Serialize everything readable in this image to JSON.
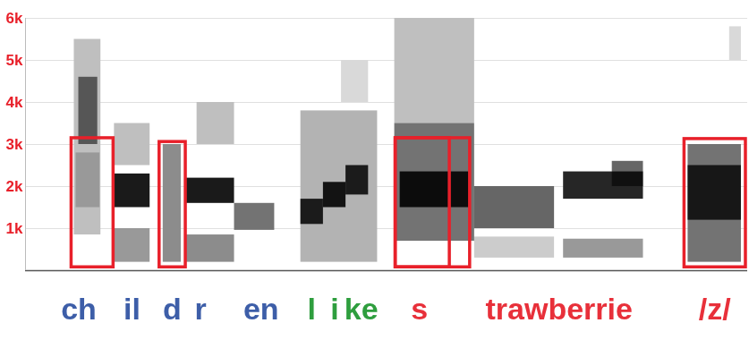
{
  "chart_data": {
    "type": "spectrogram",
    "xlim": [
      0,
      1600
    ],
    "ylim": [
      0,
      6000
    ],
    "yticks": [
      {
        "value": 1000,
        "label": "1k"
      },
      {
        "value": 2000,
        "label": "2k"
      },
      {
        "value": 3000,
        "label": "3k"
      },
      {
        "value": 4000,
        "label": "4k"
      },
      {
        "value": 5000,
        "label": "5k"
      },
      {
        "value": 6000,
        "label": "6k"
      }
    ],
    "grid": true,
    "tick_labels": "y",
    "color": "#000000",
    "cells": [
      {
        "x0": 108,
        "x1": 167,
        "y0": 850,
        "y1": 5500,
        "level": 0.25
      },
      {
        "x0": 118,
        "x1": 160,
        "y0": 3000,
        "y1": 4600,
        "level": 0.55
      },
      {
        "x0": 112,
        "x1": 165,
        "y0": 1500,
        "y1": 2800,
        "level": 0.2
      },
      {
        "x0": 197,
        "x1": 276,
        "y0": 1500,
        "y1": 2300,
        "level": 0.9
      },
      {
        "x0": 197,
        "x1": 276,
        "y0": 200,
        "y1": 1000,
        "level": 0.4
      },
      {
        "x0": 197,
        "x1": 276,
        "y0": 2500,
        "y1": 3500,
        "level": 0.25
      },
      {
        "x0": 305,
        "x1": 345,
        "y0": 200,
        "y1": 3000,
        "level": 0.45
      },
      {
        "x0": 355,
        "x1": 463,
        "y0": 1600,
        "y1": 2200,
        "level": 0.9
      },
      {
        "x0": 355,
        "x1": 463,
        "y0": 200,
        "y1": 850,
        "level": 0.45
      },
      {
        "x0": 380,
        "x1": 463,
        "y0": 3000,
        "y1": 4000,
        "level": 0.25
      },
      {
        "x0": 463,
        "x1": 552,
        "y0": 960,
        "y1": 1600,
        "level": 0.55
      },
      {
        "x0": 610,
        "x1": 780,
        "y0": 200,
        "y1": 3800,
        "level": 0.3
      },
      {
        "x0": 610,
        "x1": 660,
        "y0": 1100,
        "y1": 1700,
        "level": 0.85
      },
      {
        "x0": 660,
        "x1": 710,
        "y0": 1500,
        "y1": 2100,
        "level": 0.9
      },
      {
        "x0": 710,
        "x1": 760,
        "y0": 1800,
        "y1": 2500,
        "level": 0.85
      },
      {
        "x0": 700,
        "x1": 760,
        "y0": 4000,
        "y1": 5000,
        "level": 0.15
      },
      {
        "x0": 818,
        "x1": 995,
        "y0": 3500,
        "y1": 6000,
        "level": 0.25
      },
      {
        "x0": 818,
        "x1": 995,
        "y0": 700,
        "y1": 3500,
        "level": 0.55
      },
      {
        "x0": 830,
        "x1": 985,
        "y0": 1500,
        "y1": 2350,
        "level": 0.9
      },
      {
        "x0": 995,
        "x1": 1172,
        "y0": 1000,
        "y1": 2000,
        "level": 0.6
      },
      {
        "x0": 995,
        "x1": 1172,
        "y0": 300,
        "y1": 800,
        "level": 0.2
      },
      {
        "x0": 1192,
        "x1": 1369,
        "y0": 1700,
        "y1": 2350,
        "level": 0.85
      },
      {
        "x0": 1192,
        "x1": 1369,
        "y0": 300,
        "y1": 750,
        "level": 0.4
      },
      {
        "x0": 1300,
        "x1": 1369,
        "y0": 2000,
        "y1": 2600,
        "level": 0.6
      },
      {
        "x0": 1468,
        "x1": 1586,
        "y0": 200,
        "y1": 3000,
        "level": 0.55
      },
      {
        "x0": 1468,
        "x1": 1586,
        "y0": 1200,
        "y1": 2500,
        "level": 0.8
      },
      {
        "x0": 1560,
        "x1": 1586,
        "y0": 5000,
        "y1": 5800,
        "level": 0.15
      }
    ],
    "boxes": [
      {
        "x0": 102,
        "x1": 195,
        "y0": 80,
        "y1": 3150,
        "color": "#e8202a"
      },
      {
        "x0": 297,
        "x1": 355,
        "y0": 80,
        "y1": 3060,
        "color": "#e8202a"
      },
      {
        "x0": 820,
        "x1": 940,
        "y0": 80,
        "y1": 3150,
        "color": "#e8202a"
      },
      {
        "x0": 820,
        "x1": 985,
        "y0": 80,
        "y1": 3150,
        "color": "#e8202a"
      },
      {
        "x0": 1460,
        "x1": 1596,
        "y0": 80,
        "y1": 3130,
        "color": "#e8202a"
      }
    ],
    "segment_labels": [
      {
        "text": "ch",
        "x": 118,
        "color": "#3d5ea8"
      },
      {
        "text": "il",
        "x": 236,
        "color": "#3d5ea8"
      },
      {
        "text": "d",
        "x": 325,
        "color": "#3d5ea8"
      },
      {
        "text": "r",
        "x": 388,
        "color": "#3d5ea8"
      },
      {
        "text": "en",
        "x": 522,
        "color": "#3d5ea8"
      },
      {
        "text": "l",
        "x": 634,
        "color": "#2e9e3e"
      },
      {
        "text": "i",
        "x": 685,
        "color": "#2e9e3e"
      },
      {
        "text": "ke",
        "x": 744,
        "color": "#2e9e3e"
      },
      {
        "text": "s",
        "x": 873,
        "color": "#e8303a"
      },
      {
        "text": "trawberrie",
        "x": 1182,
        "color": "#e8303a"
      },
      {
        "text": "/z/",
        "x": 1527,
        "color": "#e8303a"
      }
    ]
  }
}
